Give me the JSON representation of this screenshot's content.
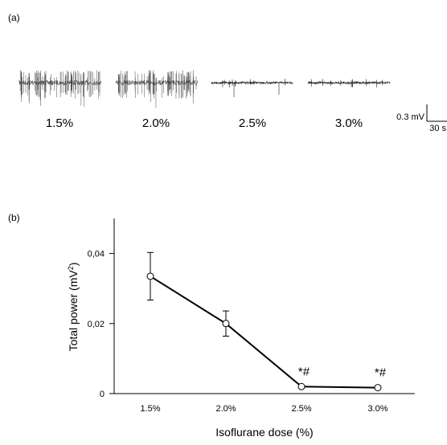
{
  "panel_a": {
    "label": "(a)",
    "traces": [
      {
        "label": "1.5%",
        "spike_level": "high"
      },
      {
        "label": "2.0%",
        "spike_level": "high"
      },
      {
        "label": "2.5%",
        "spike_level": "low"
      },
      {
        "label": "3.0%",
        "spike_level": "low"
      }
    ],
    "scale_bar": {
      "voltage": "0.3 mV",
      "time": "30 s"
    }
  },
  "panel_b": {
    "label": "(b)"
  },
  "chart_data": {
    "type": "line",
    "title": "",
    "xlabel": "Isoflurane dose (%)",
    "ylabel_main": "Total power (mV",
    "ylabel_sup": "2",
    "ylabel_end": ")",
    "categories": [
      "1.5%",
      "2.0%",
      "2.5%",
      "3.0%"
    ],
    "values": [
      0.0335,
      0.02,
      0.002,
      0.0017
    ],
    "errors": [
      0.0068,
      0.0036,
      0,
      0
    ],
    "significance": [
      "",
      "",
      "*#",
      "*#"
    ],
    "ylim": [
      0,
      0.05
    ],
    "yticks": [
      0,
      0.02,
      0.04
    ],
    "ytick_labels": [
      "0",
      "0,02",
      "0,04"
    ],
    "grid": false,
    "marker": "open-circle",
    "line_color": "#000000"
  }
}
